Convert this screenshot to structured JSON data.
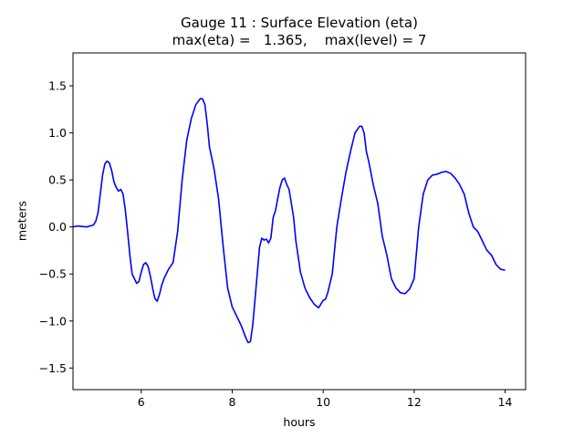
{
  "chart_data": {
    "type": "line",
    "title_lines": [
      "Gauge 11 : Surface Elevation (eta)",
      "max(eta) =   1.365,    max(level) = 7"
    ],
    "xlabel": "hours",
    "ylabel": "meters",
    "xlim": [
      4.5,
      14.45
    ],
    "ylim": [
      -1.73,
      1.85
    ],
    "xticks": [
      6,
      8,
      10,
      12,
      14
    ],
    "yticks": [
      -1.5,
      -1.0,
      -0.5,
      0.0,
      0.5,
      1.0,
      1.5
    ],
    "ytick_labels": [
      "−1.5",
      "−1.0",
      "−0.5",
      "0.0",
      "0.5",
      "1.0",
      "1.5"
    ],
    "grid": false,
    "series": [
      {
        "color": "#0000ff",
        "x": [
          4.5,
          4.6,
          4.8,
          4.95,
          5.0,
          5.05,
          5.1,
          5.15,
          5.2,
          5.25,
          5.3,
          5.35,
          5.4,
          5.45,
          5.5,
          5.55,
          5.6,
          5.65,
          5.7,
          5.75,
          5.8,
          5.9,
          5.95,
          6.0,
          6.05,
          6.1,
          6.15,
          6.2,
          6.25,
          6.3,
          6.35,
          6.4,
          6.45,
          6.5,
          6.6,
          6.7,
          6.8,
          6.9,
          7.0,
          7.1,
          7.2,
          7.3,
          7.35,
          7.4,
          7.45,
          7.5,
          7.6,
          7.7,
          7.8,
          7.9,
          8.0,
          8.1,
          8.2,
          8.3,
          8.35,
          8.4,
          8.45,
          8.5,
          8.55,
          8.6,
          8.65,
          8.7,
          8.75,
          8.8,
          8.85,
          8.9,
          8.95,
          9.0,
          9.05,
          9.1,
          9.15,
          9.2,
          9.25,
          9.3,
          9.35,
          9.4,
          9.5,
          9.6,
          9.7,
          9.8,
          9.9,
          10.0,
          10.05,
          10.1,
          10.2,
          10.3,
          10.4,
          10.5,
          10.6,
          10.7,
          10.8,
          10.85,
          10.9,
          10.95,
          11.0,
          11.1,
          11.2,
          11.3,
          11.4,
          11.5,
          11.6,
          11.7,
          11.8,
          11.9,
          12.0,
          12.1,
          12.2,
          12.3,
          12.4,
          12.5,
          12.6,
          12.7,
          12.8,
          12.9,
          13.0,
          13.1,
          13.2,
          13.3,
          13.4,
          13.5,
          13.6,
          13.7,
          13.8,
          13.9,
          14.0
        ],
        "y": [
          0.0,
          0.01,
          0.0,
          0.02,
          0.06,
          0.15,
          0.35,
          0.55,
          0.67,
          0.7,
          0.68,
          0.6,
          0.48,
          0.42,
          0.38,
          0.4,
          0.35,
          0.18,
          -0.05,
          -0.3,
          -0.5,
          -0.6,
          -0.58,
          -0.48,
          -0.4,
          -0.38,
          -0.42,
          -0.52,
          -0.65,
          -0.76,
          -0.79,
          -0.72,
          -0.62,
          -0.55,
          -0.45,
          -0.38,
          -0.05,
          0.5,
          0.92,
          1.15,
          1.3,
          1.365,
          1.36,
          1.3,
          1.1,
          0.85,
          0.62,
          0.3,
          -0.2,
          -0.65,
          -0.85,
          -0.95,
          -1.05,
          -1.18,
          -1.23,
          -1.22,
          -1.05,
          -0.78,
          -0.5,
          -0.22,
          -0.12,
          -0.14,
          -0.13,
          -0.17,
          -0.12,
          0.1,
          0.17,
          0.3,
          0.42,
          0.5,
          0.52,
          0.45,
          0.4,
          0.25,
          0.1,
          -0.15,
          -0.48,
          -0.65,
          -0.75,
          -0.82,
          -0.86,
          -0.78,
          -0.77,
          -0.7,
          -0.5,
          0.0,
          0.3,
          0.58,
          0.8,
          1.0,
          1.07,
          1.07,
          1.0,
          0.8,
          0.7,
          0.45,
          0.25,
          -0.1,
          -0.3,
          -0.55,
          -0.65,
          -0.7,
          -0.71,
          -0.66,
          -0.55,
          0.0,
          0.35,
          0.5,
          0.55,
          0.56,
          0.58,
          0.59,
          0.57,
          0.52,
          0.45,
          0.35,
          0.15,
          0.0,
          -0.05,
          -0.15,
          -0.25,
          -0.3,
          -0.4,
          -0.45,
          -0.46
        ]
      }
    ]
  }
}
